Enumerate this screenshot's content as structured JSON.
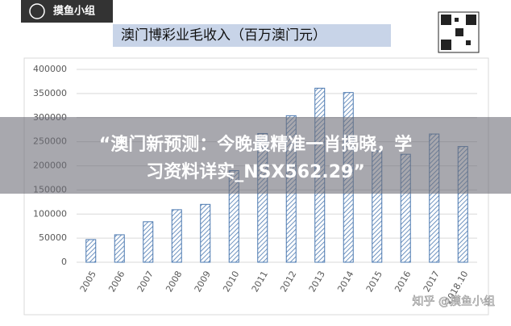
{
  "logo": "摸鱼小组",
  "chart_data": {
    "type": "bar",
    "title": "澳门博彩业毛收入（百万澳门元）",
    "categories": [
      "2005",
      "2006",
      "2007",
      "2008",
      "2009",
      "2010",
      "2011",
      "2012",
      "2013",
      "2014",
      "2015",
      "2016",
      "2017",
      "2018.10"
    ],
    "values": [
      47000,
      57000,
      84000,
      109000,
      120000,
      190000,
      267000,
      304000,
      361000,
      352000,
      231000,
      224000,
      266000,
      240000
    ],
    "color": "#4a78b0",
    "ylim": [
      0,
      400000
    ],
    "yticks": [
      0,
      50000,
      100000,
      150000,
      200000,
      250000,
      300000,
      350000,
      400000
    ],
    "grid": true
  },
  "banner": [
    "“澳门新预测：今晚最精准一肖揭晓，学",
    "习资料详实_NSX562.29”"
  ],
  "watermark": "知乎 @摸鱼小组"
}
